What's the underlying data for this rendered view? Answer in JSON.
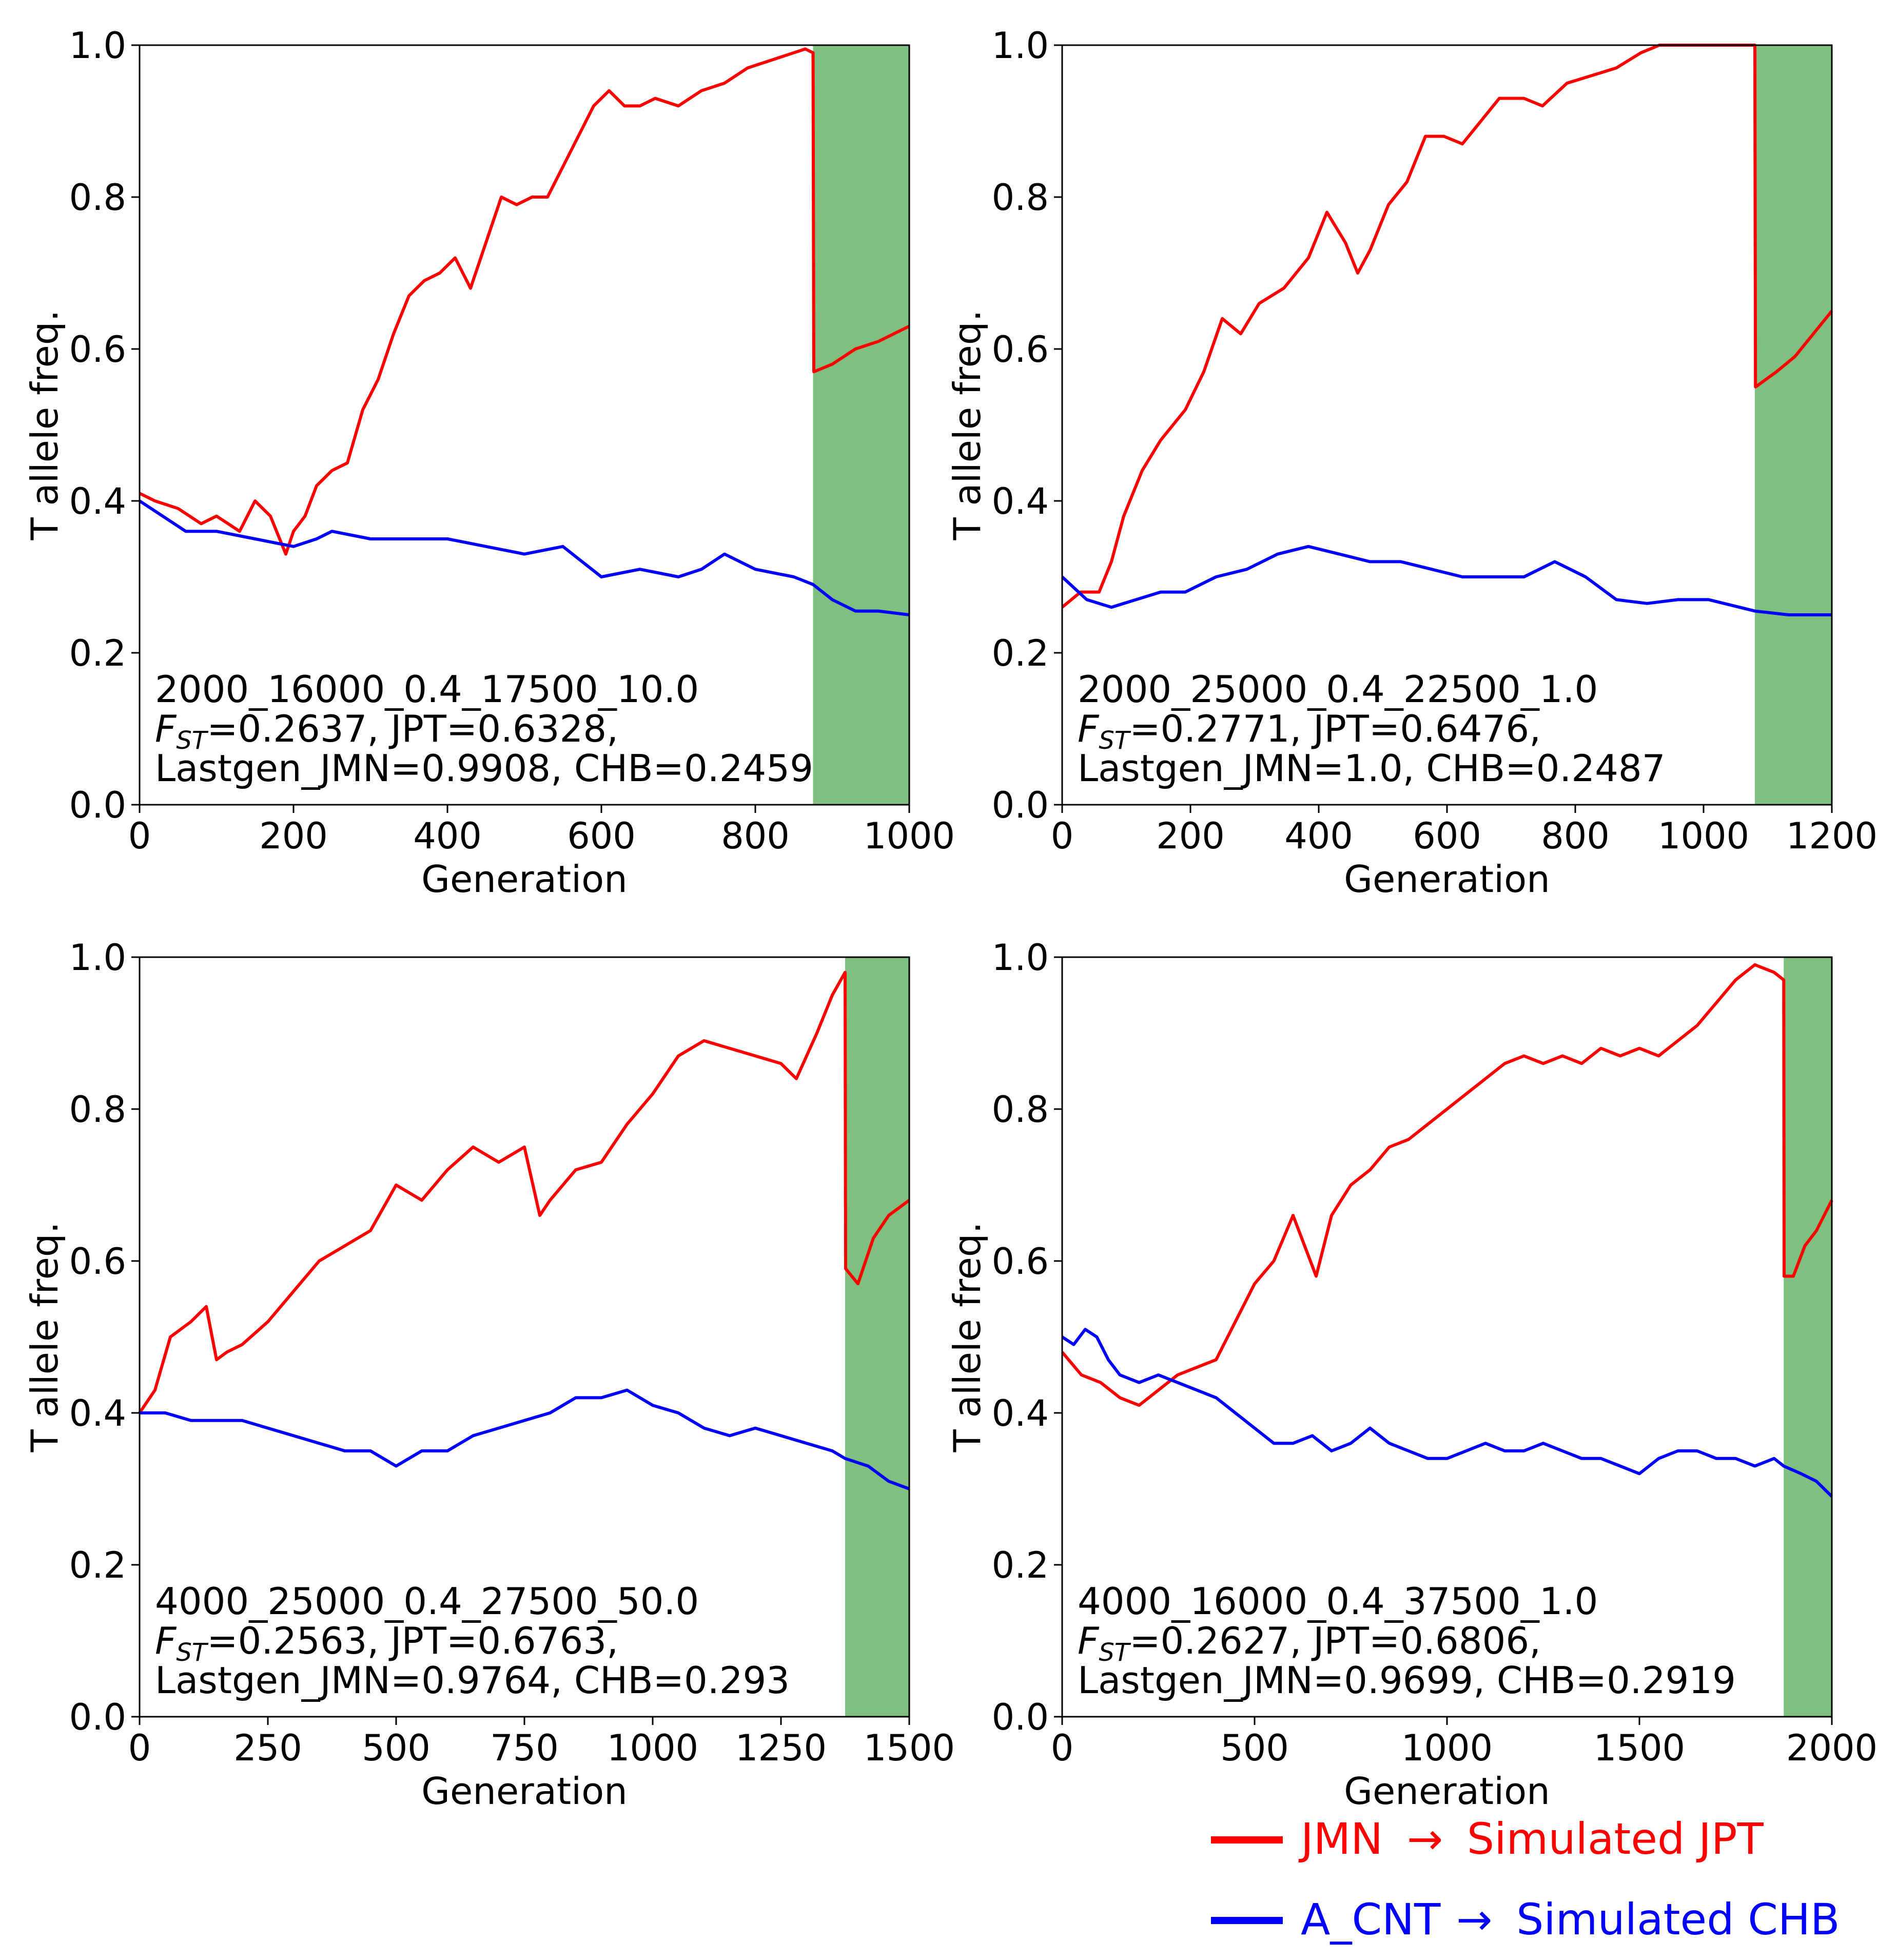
{
  "colors": {
    "jpt": "#ff0000",
    "chb": "#0000ff",
    "shade": "#007f00",
    "axes": "#000000"
  },
  "legend": {
    "jpt": {
      "left": "JMN",
      "arrow": "→",
      "right": "Simulated JPT"
    },
    "chb": {
      "left": "A_CNT",
      "arrow": "→",
      "right": "Simulated CHB"
    }
  },
  "chart_data": [
    {
      "type": "line",
      "xlabel": "Generation",
      "ylabel": "T allele freq.",
      "xlim": [
        0,
        1000
      ],
      "ylim": [
        0,
        1
      ],
      "xticks": [
        "0",
        "200",
        "400",
        "600",
        "800",
        "1000"
      ],
      "yticks": [
        "0.0",
        "0.2",
        "0.4",
        "0.6",
        "0.8",
        "1.0"
      ],
      "shaded_region": [
        875,
        1000
      ],
      "annotation": {
        "line1": "2000_16000_0.4_17500_10.0",
        "fst_label": "F",
        "fst_sub": "ST",
        "line2_rest": "=0.2637, JPT=0.6328,",
        "line3": "Lastgen_JMN=0.9908, CHB=0.2459"
      },
      "series": [
        {
          "color": "#ff0000",
          "x": [
            0,
            20,
            50,
            80,
            100,
            130,
            150,
            170,
            190,
            200,
            215,
            230,
            250,
            270,
            290,
            310,
            330,
            350,
            370,
            390,
            410,
            430,
            450,
            470,
            490,
            510,
            530,
            550,
            570,
            590,
            610,
            630,
            650,
            670,
            700,
            730,
            760,
            790,
            820,
            850,
            865,
            875,
            876,
            900,
            930,
            960,
            1000
          ],
          "y": [
            0.41,
            0.4,
            0.39,
            0.37,
            0.38,
            0.36,
            0.4,
            0.38,
            0.33,
            0.36,
            0.38,
            0.42,
            0.44,
            0.45,
            0.52,
            0.56,
            0.62,
            0.67,
            0.69,
            0.7,
            0.72,
            0.68,
            0.74,
            0.8,
            0.79,
            0.8,
            0.8,
            0.84,
            0.88,
            0.92,
            0.94,
            0.92,
            0.92,
            0.93,
            0.92,
            0.94,
            0.95,
            0.97,
            0.98,
            0.99,
            0.995,
            0.99,
            0.57,
            0.58,
            0.6,
            0.61,
            0.63
          ]
        },
        {
          "color": "#0000ff",
          "x": [
            0,
            30,
            60,
            100,
            150,
            200,
            230,
            250,
            300,
            350,
            400,
            450,
            500,
            550,
            600,
            650,
            700,
            730,
            760,
            800,
            850,
            875,
            900,
            930,
            960,
            1000
          ],
          "y": [
            0.4,
            0.38,
            0.36,
            0.36,
            0.35,
            0.34,
            0.35,
            0.36,
            0.35,
            0.35,
            0.35,
            0.34,
            0.33,
            0.34,
            0.3,
            0.31,
            0.3,
            0.31,
            0.33,
            0.31,
            0.3,
            0.29,
            0.27,
            0.255,
            0.255,
            0.25
          ]
        }
      ]
    },
    {
      "type": "line",
      "xlabel": "Generation",
      "ylabel": "T allele freq.",
      "xlim": [
        0,
        1250
      ],
      "ylim": [
        0,
        1
      ],
      "xticks": [
        "0",
        "200",
        "400",
        "600",
        "800",
        "1000",
        "1200"
      ],
      "yticks": [
        "0.0",
        "0.2",
        "0.4",
        "0.6",
        "0.8",
        "1.0"
      ],
      "shaded_region": [
        1125,
        1250
      ],
      "annotation": {
        "line1": "2000_25000_0.4_22500_1.0",
        "fst_label": "F",
        "fst_sub": "ST",
        "line2_rest": "=0.2771, JPT=0.6476,",
        "line3": "Lastgen_JMN=1.0, CHB=0.2487"
      },
      "series": [
        {
          "color": "#ff0000",
          "x": [
            0,
            30,
            60,
            80,
            100,
            130,
            160,
            200,
            230,
            260,
            290,
            320,
            360,
            400,
            430,
            460,
            480,
            500,
            530,
            560,
            590,
            620,
            650,
            680,
            710,
            750,
            780,
            820,
            860,
            900,
            940,
            970,
            1000,
            1050,
            1100,
            1125,
            1126,
            1160,
            1190,
            1220,
            1250
          ],
          "y": [
            0.26,
            0.28,
            0.28,
            0.32,
            0.38,
            0.44,
            0.48,
            0.52,
            0.57,
            0.64,
            0.62,
            0.66,
            0.68,
            0.72,
            0.78,
            0.74,
            0.7,
            0.73,
            0.79,
            0.82,
            0.88,
            0.88,
            0.87,
            0.9,
            0.93,
            0.93,
            0.92,
            0.95,
            0.96,
            0.97,
            0.99,
            1.0,
            1.0,
            1.0,
            1.0,
            1.0,
            0.55,
            0.57,
            0.59,
            0.62,
            0.65
          ]
        },
        {
          "color": "#0000ff",
          "x": [
            0,
            40,
            80,
            120,
            160,
            200,
            250,
            300,
            350,
            400,
            450,
            500,
            550,
            600,
            650,
            700,
            750,
            800,
            850,
            900,
            950,
            1000,
            1050,
            1100,
            1125,
            1180,
            1250
          ],
          "y": [
            0.3,
            0.27,
            0.26,
            0.27,
            0.28,
            0.28,
            0.3,
            0.31,
            0.33,
            0.34,
            0.33,
            0.32,
            0.32,
            0.31,
            0.3,
            0.3,
            0.3,
            0.32,
            0.3,
            0.27,
            0.265,
            0.27,
            0.27,
            0.26,
            0.255,
            0.25,
            0.25
          ]
        }
      ]
    },
    {
      "type": "line",
      "xlabel": "Generation",
      "ylabel": "T allele freq.",
      "xlim": [
        0,
        1500
      ],
      "ylim": [
        0,
        1
      ],
      "xticks": [
        "0",
        "250",
        "500",
        "750",
        "1000",
        "1250",
        "1500"
      ],
      "yticks": [
        "0.0",
        "0.2",
        "0.4",
        "0.6",
        "0.8",
        "1.0"
      ],
      "shaded_region": [
        1375,
        1500
      ],
      "annotation": {
        "line1": "4000_25000_0.4_27500_50.0",
        "fst_label": "F",
        "fst_sub": "ST",
        "line2_rest": "=0.2563, JPT=0.6763,",
        "line3": "Lastgen_JMN=0.9764, CHB=0.293"
      },
      "series": [
        {
          "color": "#ff0000",
          "x": [
            0,
            30,
            60,
            100,
            130,
            150,
            170,
            200,
            250,
            300,
            350,
            400,
            450,
            500,
            550,
            600,
            650,
            700,
            750,
            780,
            800,
            850,
            900,
            950,
            1000,
            1050,
            1100,
            1150,
            1200,
            1250,
            1280,
            1320,
            1350,
            1375,
            1376,
            1400,
            1430,
            1460,
            1500
          ],
          "y": [
            0.4,
            0.43,
            0.5,
            0.52,
            0.54,
            0.47,
            0.48,
            0.49,
            0.52,
            0.56,
            0.6,
            0.62,
            0.64,
            0.7,
            0.68,
            0.72,
            0.75,
            0.73,
            0.75,
            0.66,
            0.68,
            0.72,
            0.73,
            0.78,
            0.82,
            0.87,
            0.89,
            0.88,
            0.87,
            0.86,
            0.84,
            0.9,
            0.95,
            0.98,
            0.59,
            0.57,
            0.63,
            0.66,
            0.68
          ]
        },
        {
          "color": "#0000ff",
          "x": [
            0,
            50,
            100,
            150,
            200,
            250,
            300,
            350,
            400,
            450,
            500,
            550,
            600,
            650,
            700,
            750,
            800,
            850,
            900,
            950,
            1000,
            1050,
            1100,
            1150,
            1200,
            1250,
            1300,
            1350,
            1375,
            1420,
            1460,
            1500
          ],
          "y": [
            0.4,
            0.4,
            0.39,
            0.39,
            0.39,
            0.38,
            0.37,
            0.36,
            0.35,
            0.35,
            0.33,
            0.35,
            0.35,
            0.37,
            0.38,
            0.39,
            0.4,
            0.42,
            0.42,
            0.43,
            0.41,
            0.4,
            0.38,
            0.37,
            0.38,
            0.37,
            0.36,
            0.35,
            0.34,
            0.33,
            0.31,
            0.3
          ]
        }
      ]
    },
    {
      "type": "line",
      "xlabel": "Generation",
      "ylabel": "T allele freq.",
      "xlim": [
        0,
        2000
      ],
      "ylim": [
        0,
        1
      ],
      "xticks": [
        "0",
        "500",
        "1000",
        "1500",
        "2000"
      ],
      "yticks": [
        "0.0",
        "0.2",
        "0.4",
        "0.6",
        "0.8",
        "1.0"
      ],
      "shaded_region": [
        1875,
        2000
      ],
      "annotation": {
        "line1": "4000_16000_0.4_37500_1.0",
        "fst_label": "F",
        "fst_sub": "ST",
        "line2_rest": "=0.2627, JPT=0.6806,",
        "line3": "Lastgen_JMN=0.9699, CHB=0.2919"
      },
      "series": [
        {
          "color": "#ff0000",
          "x": [
            0,
            50,
            100,
            150,
            200,
            250,
            300,
            350,
            400,
            450,
            500,
            550,
            600,
            630,
            660,
            700,
            750,
            800,
            850,
            900,
            950,
            1000,
            1050,
            1100,
            1150,
            1200,
            1250,
            1300,
            1350,
            1400,
            1450,
            1500,
            1550,
            1600,
            1650,
            1700,
            1750,
            1800,
            1850,
            1875,
            1876,
            1900,
            1930,
            1960,
            2000
          ],
          "y": [
            0.48,
            0.45,
            0.44,
            0.42,
            0.41,
            0.43,
            0.45,
            0.46,
            0.47,
            0.52,
            0.57,
            0.6,
            0.66,
            0.62,
            0.58,
            0.66,
            0.7,
            0.72,
            0.75,
            0.76,
            0.78,
            0.8,
            0.82,
            0.84,
            0.86,
            0.87,
            0.86,
            0.87,
            0.86,
            0.88,
            0.87,
            0.88,
            0.87,
            0.89,
            0.91,
            0.94,
            0.97,
            0.99,
            0.98,
            0.97,
            0.58,
            0.58,
            0.62,
            0.64,
            0.68
          ]
        },
        {
          "color": "#0000ff",
          "x": [
            0,
            30,
            60,
            90,
            120,
            150,
            200,
            250,
            300,
            350,
            400,
            450,
            500,
            550,
            600,
            650,
            700,
            750,
            800,
            850,
            900,
            950,
            1000,
            1050,
            1100,
            1150,
            1200,
            1250,
            1300,
            1350,
            1400,
            1450,
            1500,
            1550,
            1600,
            1650,
            1700,
            1750,
            1800,
            1850,
            1875,
            1920,
            1960,
            2000
          ],
          "y": [
            0.5,
            0.49,
            0.51,
            0.5,
            0.47,
            0.45,
            0.44,
            0.45,
            0.44,
            0.43,
            0.42,
            0.4,
            0.38,
            0.36,
            0.36,
            0.37,
            0.35,
            0.36,
            0.38,
            0.36,
            0.35,
            0.34,
            0.34,
            0.35,
            0.36,
            0.35,
            0.35,
            0.36,
            0.35,
            0.34,
            0.34,
            0.33,
            0.32,
            0.34,
            0.35,
            0.35,
            0.34,
            0.34,
            0.33,
            0.34,
            0.33,
            0.32,
            0.31,
            0.29
          ]
        }
      ]
    }
  ]
}
